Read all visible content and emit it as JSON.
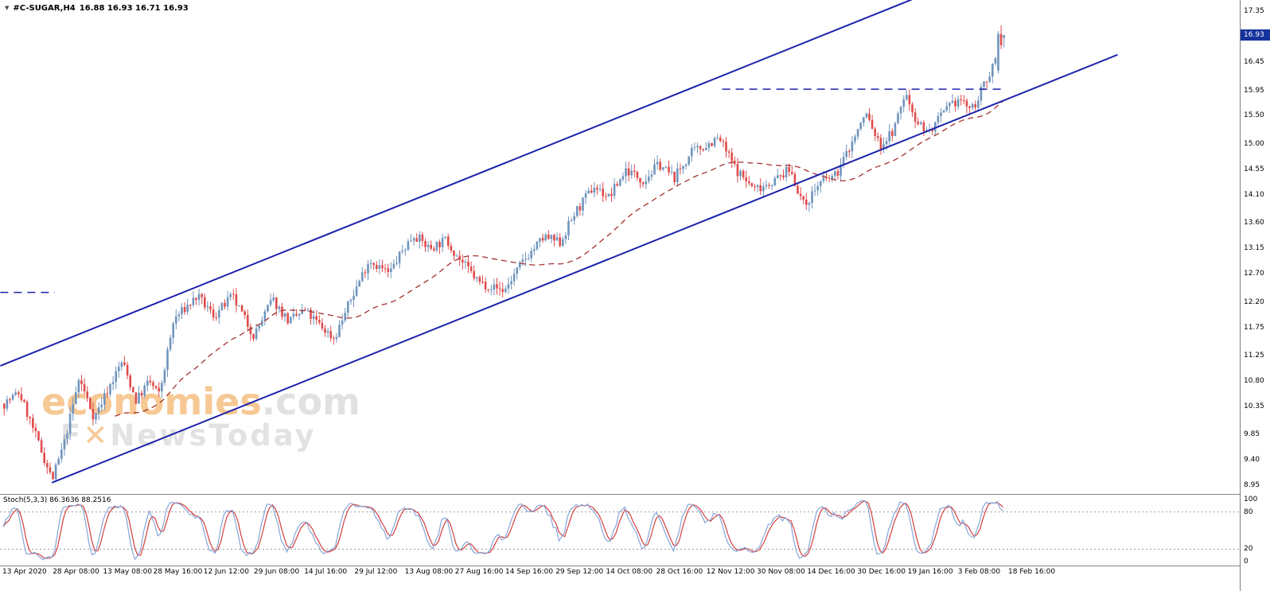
{
  "header": {
    "marker": "▼",
    "symbol": "#C-SUGAR,H4",
    "quotes": "16.88 16.93 16.71 16.93"
  },
  "watermark": {
    "brand_main": "economies",
    "brand_suffix": ".com",
    "tagline_prefix": "F",
    "tagline_x": "✕",
    "tagline_suffix": "NewsToday"
  },
  "indicator_label": "Stoch(5,3,3) 86.3636 88.2516",
  "price_axis": {
    "labels": [
      "17.35",
      "16.45",
      "15.95",
      "15.50",
      "15.00",
      "14.55",
      "14.10",
      "13.60",
      "13.15",
      "12.70",
      "12.20",
      "11.75",
      "11.25",
      "10.80",
      "10.35",
      "9.85",
      "9.40",
      "8.95"
    ],
    "current_price": "16.93"
  },
  "stoch_axis": {
    "labels": [
      "100",
      "80",
      "20",
      "0"
    ]
  },
  "time_axis": {
    "labels": [
      "13 Apr 2020",
      "28 Apr 08:00",
      "13 May 08:00",
      "28 May 16:00",
      "12 Jun 12:00",
      "29 Jun 08:00",
      "14 Jul 16:00",
      "29 Jul 12:00",
      "13 Aug 08:00",
      "27 Aug 16:00",
      "14 Sep 16:00",
      "29 Sep 12:00",
      "14 Oct 08:00",
      "28 Oct 16:00",
      "12 Nov 12:00",
      "30 Nov 08:00",
      "14 Dec 16:00",
      "30 Dec 16:00",
      "19 Jan 16:00",
      "3 Feb 08:00",
      "18 Feb 16:00"
    ]
  },
  "colors": {
    "up": "#7094bd",
    "down": "#e04b4b",
    "channel": "#1c22aa",
    "stoch_main": "#87a6d8",
    "stoch_signal": "#d23f3f",
    "stoch_level": "#9b9b9b",
    "price_tag_bg": "#16339c",
    "axis_text": "#000000"
  },
  "chart_data": {
    "type": "candlestick+stochastic",
    "symbol": "#C-SUGAR",
    "timeframe": "H4",
    "title": "#C-SUGAR,H4 candlestick chart with ascending channel and Stochastic(5,3,3)",
    "ohlc_current": {
      "open": 16.88,
      "high": 16.93,
      "low": 16.71,
      "close": 16.93
    },
    "stoch_current": {
      "k": 86.3636,
      "d": 88.2516
    },
    "price_range": [
      8.8,
      17.55
    ],
    "candle_count": 350,
    "close_waypoints": [
      [
        0.0,
        10.4
      ],
      [
        0.015,
        10.6
      ],
      [
        0.03,
        9.9
      ],
      [
        0.048,
        9.05
      ],
      [
        0.06,
        9.7
      ],
      [
        0.075,
        10.85
      ],
      [
        0.09,
        10.15
      ],
      [
        0.105,
        10.7
      ],
      [
        0.118,
        11.15
      ],
      [
        0.132,
        10.45
      ],
      [
        0.145,
        10.8
      ],
      [
        0.155,
        10.55
      ],
      [
        0.17,
        11.9
      ],
      [
        0.193,
        12.3
      ],
      [
        0.21,
        11.95
      ],
      [
        0.228,
        12.3
      ],
      [
        0.25,
        11.6
      ],
      [
        0.268,
        12.25
      ],
      [
        0.285,
        11.85
      ],
      [
        0.3,
        12.05
      ],
      [
        0.315,
        11.8
      ],
      [
        0.33,
        11.55
      ],
      [
        0.348,
        12.3
      ],
      [
        0.365,
        12.95
      ],
      [
        0.385,
        12.7
      ],
      [
        0.398,
        13.1
      ],
      [
        0.41,
        13.4
      ],
      [
        0.425,
        13.15
      ],
      [
        0.442,
        13.3
      ],
      [
        0.458,
        12.9
      ],
      [
        0.475,
        12.55
      ],
      [
        0.5,
        12.4
      ],
      [
        0.52,
        12.95
      ],
      [
        0.54,
        13.35
      ],
      [
        0.556,
        13.25
      ],
      [
        0.57,
        13.75
      ],
      [
        0.59,
        14.25
      ],
      [
        0.605,
        14.05
      ],
      [
        0.622,
        14.55
      ],
      [
        0.64,
        14.35
      ],
      [
        0.655,
        14.65
      ],
      [
        0.67,
        14.4
      ],
      [
        0.688,
        14.85
      ],
      [
        0.715,
        15.1
      ],
      [
        0.732,
        14.55
      ],
      [
        0.75,
        14.2
      ],
      [
        0.77,
        14.35
      ],
      [
        0.786,
        14.55
      ],
      [
        0.8,
        13.9
      ],
      [
        0.815,
        14.3
      ],
      [
        0.832,
        14.45
      ],
      [
        0.85,
        15.1
      ],
      [
        0.862,
        15.55
      ],
      [
        0.876,
        14.95
      ],
      [
        0.89,
        15.25
      ],
      [
        0.901,
        15.9
      ],
      [
        0.913,
        15.4
      ],
      [
        0.925,
        15.2
      ],
      [
        0.94,
        15.55
      ],
      [
        0.955,
        15.8
      ],
      [
        0.968,
        15.6
      ],
      [
        0.982,
        16.1
      ],
      [
        1.0,
        16.93
      ]
    ],
    "recent_candles": [
      {
        "o": 16.3,
        "h": 17.0,
        "l": 16.25,
        "c": 16.95
      },
      {
        "o": 16.95,
        "h": 17.1,
        "l": 16.68,
        "c": 16.75
      },
      {
        "o": 16.88,
        "h": 16.93,
        "l": 16.71,
        "c": 16.93
      }
    ],
    "trendlines": [
      {
        "i1": -1,
        "p1": 11.07,
        "i2": 330,
        "p2": 17.82
      },
      {
        "i1": 17,
        "p1": 9.0,
        "i2": 389,
        "p2": 16.58
      }
    ],
    "hlines": [
      {
        "i1": 251,
        "i2": 350,
        "price": 15.97
      },
      {
        "i1": -1,
        "i2": 18,
        "price": 12.37
      }
    ],
    "ma": {
      "period": 40,
      "style": "dashed",
      "color": "#a33030"
    },
    "stoch_settings": {
      "k": 5,
      "slowing": 3,
      "d": 3,
      "levels": [
        80,
        20
      ],
      "range": [
        0,
        100
      ]
    },
    "seed": 7,
    "noise": 0.09
  }
}
